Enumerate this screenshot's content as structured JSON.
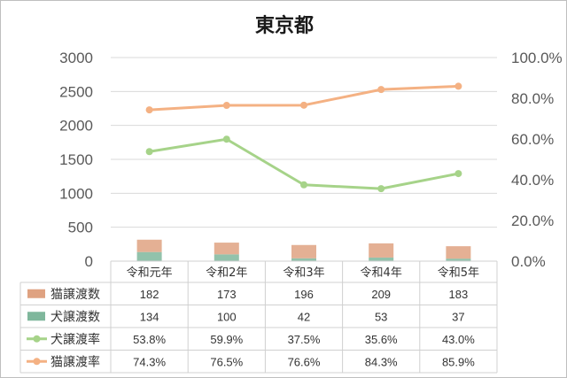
{
  "chart_data": {
    "type": "bar",
    "title": "東京都",
    "categories": [
      "令和元年",
      "令和2年",
      "令和3年",
      "令和4年",
      "令和5年"
    ],
    "y_left": {
      "lim": [
        0,
        3000
      ],
      "ticks": [
        "0",
        "500",
        "1000",
        "1500",
        "2000",
        "2500",
        "3000"
      ]
    },
    "y_right": {
      "lim": [
        0,
        100
      ],
      "ticks": [
        "0.0%",
        "20.0%",
        "40.0%",
        "60.0%",
        "80.0%",
        "100.0%"
      ]
    },
    "grid": "horizontal",
    "legend": "data-table",
    "series": [
      {
        "name": "猫譲渡数",
        "kind": "stacked-bar",
        "axis": "left",
        "color": "#dfa281",
        "values": [
          182,
          173,
          196,
          209,
          183
        ],
        "labels": [
          "182",
          "173",
          "196",
          "209",
          "183"
        ]
      },
      {
        "name": "犬譲渡数",
        "kind": "stacked-bar",
        "axis": "left",
        "color": "#7fb79c",
        "values": [
          134,
          100,
          42,
          53,
          37
        ],
        "labels": [
          "134",
          "100",
          "42",
          "53",
          "37"
        ]
      },
      {
        "name": "犬譲渡率",
        "kind": "line",
        "axis": "right",
        "color": "#a6d389",
        "values": [
          53.8,
          59.9,
          37.5,
          35.6,
          43.0
        ],
        "labels": [
          "53.8%",
          "59.9%",
          "37.5%",
          "35.6%",
          "43.0%"
        ]
      },
      {
        "name": "猫譲渡率",
        "kind": "line",
        "axis": "right",
        "color": "#f4b183",
        "values": [
          74.3,
          76.5,
          76.6,
          84.3,
          85.9
        ],
        "labels": [
          "74.3%",
          "76.5%",
          "76.6%",
          "84.3%",
          "85.9%"
        ]
      }
    ]
  }
}
